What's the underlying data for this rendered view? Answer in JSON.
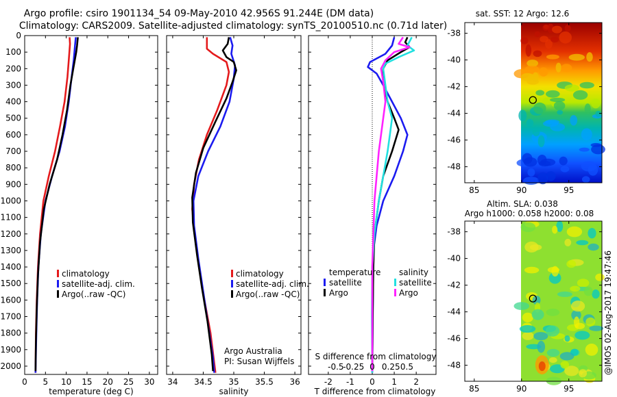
{
  "figure": {
    "title_line1": "Argo profile: csiro 1901134_54 09-May-2010 42.956S 91.244E (DM data)",
    "title_line2": "Climatology: CARS2009. Satellite-adjusted climatology: synTS_20100510.nc (0.71d later)",
    "credit": "Argo Australia",
    "pi": "PI: Susan Wijffels",
    "imos": "@IMOS 02-Aug-2017 19:47:46"
  },
  "colors": {
    "red": "#e41a1c",
    "blue": "#1b1bf0",
    "black": "#000000",
    "magenta": "#ff22ff",
    "cyan": "#22e0e0"
  },
  "chart_data": [
    {
      "id": "temperature",
      "type": "line",
      "xlabel": "temperature (deg C)",
      "ylabel": "",
      "xlim": [
        0,
        32
      ],
      "ylim": [
        0,
        2050
      ],
      "x_ticks": [
        0,
        5,
        10,
        15,
        20,
        25,
        30
      ],
      "y_ticks": [
        0,
        100,
        200,
        300,
        400,
        500,
        600,
        700,
        800,
        900,
        1000,
        1100,
        1200,
        1300,
        1400,
        1500,
        1600,
        1700,
        1800,
        1900,
        2000
      ],
      "legend": [
        "climatology",
        "satellite-adj. clim.",
        "Argo(..raw -QC)"
      ],
      "series": [
        {
          "name": "climatology",
          "color": "red",
          "points": [
            [
              10.8,
              10
            ],
            [
              10.9,
              50
            ],
            [
              10.6,
              150
            ],
            [
              10.3,
              250
            ],
            [
              9.6,
              400
            ],
            [
              8.5,
              550
            ],
            [
              7.3,
              700
            ],
            [
              5.8,
              850
            ],
            [
              4.5,
              1000
            ],
            [
              3.7,
              1200
            ],
            [
              3.2,
              1400
            ],
            [
              2.9,
              1600
            ],
            [
              2.7,
              1800
            ],
            [
              2.6,
              2040
            ]
          ]
        },
        {
          "name": "satellite-adj. clim.",
          "color": "blue",
          "points": [
            [
              12.3,
              10
            ],
            [
              12.1,
              60
            ],
            [
              11.8,
              150
            ],
            [
              11.3,
              250
            ],
            [
              10.6,
              400
            ],
            [
              9.7,
              550
            ],
            [
              8.4,
              700
            ],
            [
              6.6,
              850
            ],
            [
              5.0,
              1000
            ],
            [
              3.9,
              1200
            ],
            [
              3.3,
              1400
            ],
            [
              3.0,
              1600
            ],
            [
              2.8,
              1800
            ],
            [
              2.6,
              2040
            ]
          ]
        },
        {
          "name": "Argo(..raw -QC)",
          "color": "black",
          "points": [
            [
              12.8,
              10
            ],
            [
              12.6,
              60
            ],
            [
              12.4,
              100
            ],
            [
              11.7,
              200
            ],
            [
              11.0,
              300
            ],
            [
              10.2,
              450
            ],
            [
              9.1,
              600
            ],
            [
              7.8,
              750
            ],
            [
              6.0,
              900
            ],
            [
              4.6,
              1050
            ],
            [
              3.7,
              1250
            ],
            [
              3.2,
              1450
            ],
            [
              2.9,
              1650
            ],
            [
              2.7,
              1850
            ],
            [
              2.6,
              2030
            ]
          ]
        }
      ]
    },
    {
      "id": "salinity",
      "type": "line",
      "xlabel": "salinity",
      "xlim": [
        33.9,
        36.1
      ],
      "ylim": [
        0,
        2050
      ],
      "x_ticks": [
        34,
        34.5,
        35,
        35.5,
        36
      ],
      "y_ticks": [],
      "legend": [
        "climatology",
        "satellite-adj. clim.",
        "Argo(..raw -QC)"
      ],
      "series": [
        {
          "name": "climatology",
          "color": "red",
          "points": [
            [
              34.56,
              10
            ],
            [
              34.56,
              80
            ],
            [
              34.66,
              110
            ],
            [
              34.88,
              160
            ],
            [
              34.92,
              220
            ],
            [
              34.88,
              300
            ],
            [
              34.73,
              450
            ],
            [
              34.56,
              600
            ],
            [
              34.43,
              750
            ],
            [
              34.35,
              900
            ],
            [
              34.32,
              1050
            ],
            [
              34.36,
              1200
            ],
            [
              34.43,
              1400
            ],
            [
              34.52,
              1600
            ],
            [
              34.62,
              1800
            ],
            [
              34.7,
              2040
            ]
          ]
        },
        {
          "name": "satellite-adj. clim.",
          "color": "blue",
          "points": [
            [
              34.94,
              10
            ],
            [
              34.98,
              60
            ],
            [
              34.96,
              110
            ],
            [
              35.02,
              180
            ],
            [
              35.0,
              260
            ],
            [
              34.93,
              400
            ],
            [
              34.78,
              550
            ],
            [
              34.58,
              700
            ],
            [
              34.42,
              850
            ],
            [
              34.34,
              1000
            ],
            [
              34.35,
              1150
            ],
            [
              34.42,
              1350
            ],
            [
              34.5,
              1550
            ],
            [
              34.58,
              1750
            ],
            [
              34.66,
              1950
            ],
            [
              34.68,
              2040
            ]
          ]
        },
        {
          "name": "Argo(..raw -QC)",
          "color": "black",
          "points": [
            [
              34.92,
              10
            ],
            [
              34.9,
              50
            ],
            [
              34.82,
              90
            ],
            [
              34.88,
              130
            ],
            [
              35.0,
              160
            ],
            [
              35.04,
              210
            ],
            [
              34.98,
              280
            ],
            [
              34.88,
              380
            ],
            [
              34.7,
              520
            ],
            [
              34.5,
              680
            ],
            [
              34.38,
              830
            ],
            [
              34.32,
              980
            ],
            [
              34.33,
              1130
            ],
            [
              34.4,
              1330
            ],
            [
              34.48,
              1530
            ],
            [
              34.57,
              1730
            ],
            [
              34.64,
              1930
            ],
            [
              34.66,
              2030
            ]
          ]
        }
      ]
    },
    {
      "id": "differences",
      "type": "line",
      "xlabel": "T difference from climatology",
      "xlabel_top": "S difference from climatology",
      "xlim": [
        -2.9,
        2.9
      ],
      "ylim": [
        0,
        2050
      ],
      "x_ticks": [
        -2,
        -1,
        0,
        1,
        2
      ],
      "s_tick_labels": [
        "-0.5",
        "-0.25",
        "0",
        "0.25",
        "0.5"
      ],
      "y_ticks": [],
      "legend_titles": [
        "temperature",
        "salinity"
      ],
      "legend": [
        "satellite",
        "Argo",
        "satellite",
        "Argo"
      ],
      "series": [
        {
          "name": "T satellite",
          "color": "blue",
          "points": [
            [
              1.0,
              10
            ],
            [
              0.9,
              60
            ],
            [
              0.6,
              110
            ],
            [
              -0.1,
              160
            ],
            [
              -0.2,
              190
            ],
            [
              0.2,
              230
            ],
            [
              0.5,
              300
            ],
            [
              0.9,
              400
            ],
            [
              1.3,
              500
            ],
            [
              1.6,
              600
            ],
            [
              1.4,
              700
            ],
            [
              1.0,
              850
            ],
            [
              0.5,
              1000
            ],
            [
              0.2,
              1150
            ],
            [
              0.05,
              1300
            ],
            [
              0.03,
              1600
            ],
            [
              0.0,
              2040
            ]
          ]
        },
        {
          "name": "T Argo",
          "color": "black",
          "points": [
            [
              1.6,
              10
            ],
            [
              1.5,
              40
            ],
            [
              1.7,
              70
            ],
            [
              1.3,
              100
            ],
            [
              0.7,
              150
            ],
            [
              0.5,
              200
            ],
            [
              0.5,
              280
            ],
            [
              0.7,
              400
            ],
            [
              1.0,
              500
            ],
            [
              1.2,
              570
            ],
            [
              0.9,
              700
            ],
            [
              0.5,
              850
            ],
            [
              0.3,
              1000
            ],
            [
              0.1,
              1200
            ],
            [
              0.05,
              1400
            ],
            [
              0.02,
              1700
            ],
            [
              0.0,
              2030
            ]
          ]
        },
        {
          "name": "S satellite",
          "color": "cyan",
          "points": [
            [
              1.8,
              10
            ],
            [
              1.6,
              60
            ],
            [
              1.9,
              90
            ],
            [
              1.2,
              130
            ],
            [
              0.6,
              170
            ],
            [
              0.5,
              200
            ],
            [
              0.6,
              300
            ],
            [
              0.7,
              400
            ],
            [
              0.9,
              500
            ],
            [
              0.8,
              600
            ],
            [
              0.7,
              700
            ],
            [
              0.5,
              850
            ],
            [
              0.3,
              1000
            ],
            [
              0.1,
              1200
            ],
            [
              0.0,
              1400
            ],
            [
              -0.02,
              1700
            ],
            [
              0.0,
              2040
            ]
          ]
        },
        {
          "name": "S Argo",
          "color": "magenta",
          "points": [
            [
              1.4,
              10
            ],
            [
              1.2,
              50
            ],
            [
              1.7,
              70
            ],
            [
              1.0,
              100
            ],
            [
              0.6,
              150
            ],
            [
              0.4,
              200
            ],
            [
              0.5,
              280
            ],
            [
              0.6,
              400
            ],
            [
              0.5,
              500
            ],
            [
              0.4,
              600
            ],
            [
              0.3,
              700
            ],
            [
              0.2,
              850
            ],
            [
              0.1,
              1000
            ],
            [
              0.05,
              1200
            ],
            [
              0.0,
              1400
            ],
            [
              0.0,
              1700
            ],
            [
              0.0,
              2030
            ]
          ]
        }
      ]
    }
  ],
  "maps": [
    {
      "id": "sst-map",
      "title": "sat. SST: 12 Argo: 12.6",
      "x_ticks": [
        85,
        90,
        95
      ],
      "y_ticks": [
        -38,
        -40,
        -42,
        -44,
        -46,
        -48
      ],
      "xlim": [
        84,
        98.5
      ],
      "ylim": [
        -49.2,
        -37.2
      ],
      "data_lon": [
        90,
        98.5
      ],
      "float_pos": [
        91.2,
        -43.0
      ],
      "type": "sst"
    },
    {
      "id": "sla-map",
      "title_line1": "Altim. SLA: 0.038",
      "title_line2": "Argo h1000: 0.058 h2000: 0.08",
      "x_ticks": [
        85,
        90,
        95
      ],
      "y_ticks": [
        -38,
        -40,
        -42,
        -44,
        -46,
        -48
      ],
      "xlim": [
        84,
        98.5
      ],
      "ylim": [
        -49.2,
        -37.2
      ],
      "data_lon": [
        90,
        98.5
      ],
      "float_pos": [
        91.2,
        -43.0
      ],
      "type": "sla"
    }
  ]
}
